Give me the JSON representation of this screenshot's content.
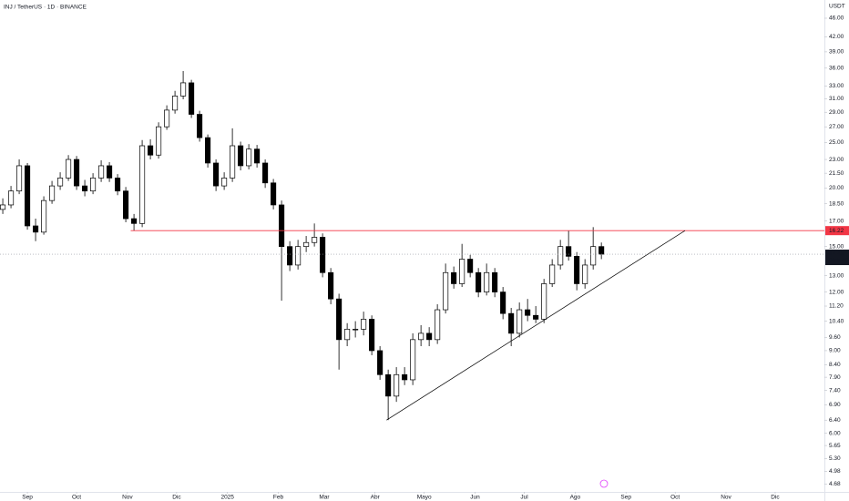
{
  "chart_data": {
    "type": "candlestick",
    "title": "INJ / TetherUS · 1D · BINANCE",
    "y_axis_label": "USDT",
    "log_scale": true,
    "grid": false,
    "xlim": [
      -16.7,
      486
    ],
    "ylim": [
      4.5,
      50.3
    ],
    "xticks": [
      {
        "value": 0,
        "label": "Sep"
      },
      {
        "value": 30,
        "label": "Oct"
      },
      {
        "value": 61,
        "label": "Nov"
      },
      {
        "value": 91,
        "label": "Dic"
      },
      {
        "value": 122,
        "label": "2025"
      },
      {
        "value": 153,
        "label": "Feb"
      },
      {
        "value": 181,
        "label": "Mar"
      },
      {
        "value": 212,
        "label": "Abr"
      },
      {
        "value": 242,
        "label": "Mayo"
      },
      {
        "value": 273,
        "label": "Jun"
      },
      {
        "value": 303,
        "label": "Jul"
      },
      {
        "value": 334,
        "label": "Ago"
      },
      {
        "value": 365,
        "label": "Sep"
      },
      {
        "value": 395,
        "label": "Oct"
      },
      {
        "value": 426,
        "label": "Nov"
      },
      {
        "value": 456,
        "label": "Dic"
      }
    ],
    "yticks": [
      {
        "value": 46,
        "label": "46.00"
      },
      {
        "value": 42,
        "label": "42.00"
      },
      {
        "value": 39,
        "label": "39.00"
      },
      {
        "value": 36,
        "label": "36.00"
      },
      {
        "value": 33,
        "label": "33.00"
      },
      {
        "value": 31,
        "label": "31.00"
      },
      {
        "value": 29,
        "label": "29.00"
      },
      {
        "value": 27,
        "label": "27.00"
      },
      {
        "value": 25,
        "label": "25.00"
      },
      {
        "value": 23,
        "label": "23.00"
      },
      {
        "value": 21.5,
        "label": "21.50"
      },
      {
        "value": 20,
        "label": "20.00"
      },
      {
        "value": 18.5,
        "label": "18.50"
      },
      {
        "value": 17,
        "label": "17.00"
      },
      {
        "value": 15,
        "label": "15.00"
      },
      {
        "value": 13,
        "label": "13.00"
      },
      {
        "value": 12,
        "label": "12.00"
      },
      {
        "value": 11.2,
        "label": "11.20"
      },
      {
        "value": 10.4,
        "label": "10.40"
      },
      {
        "value": 9.6,
        "label": "9.60"
      },
      {
        "value": 9,
        "label": "9.00"
      },
      {
        "value": 8.4,
        "label": "8.40"
      },
      {
        "value": 7.9,
        "label": "7.90"
      },
      {
        "value": 7.4,
        "label": "7.40"
      },
      {
        "value": 6.9,
        "label": "6.90"
      },
      {
        "value": 6.4,
        "label": "6.40"
      },
      {
        "value": 6,
        "label": "6.00"
      },
      {
        "value": 5.65,
        "label": "5.65"
      },
      {
        "value": 5.3,
        "label": "5.30"
      },
      {
        "value": 4.98,
        "label": "4.98"
      },
      {
        "value": 4.68,
        "label": "4.68"
      }
    ],
    "x": [
      -15,
      -10,
      -5,
      0,
      5,
      10,
      15,
      20,
      25,
      30,
      35,
      40,
      45,
      50,
      55,
      60,
      65,
      70,
      75,
      80,
      85,
      90,
      95,
      100,
      105,
      110,
      115,
      120,
      125,
      130,
      135,
      140,
      145,
      150,
      155,
      160,
      165,
      170,
      175,
      180,
      185,
      190,
      195,
      200,
      205,
      210,
      215,
      220,
      225,
      230,
      235,
      240,
      245,
      250,
      255,
      260,
      265,
      270,
      275,
      280,
      285,
      290,
      295,
      300,
      305,
      310,
      315,
      320,
      325,
      330,
      335,
      340,
      345,
      350
    ],
    "open": [
      18.0,
      18.4,
      19.7,
      22.3,
      16.6,
      16.1,
      18.8,
      20.2,
      21.0,
      23.0,
      20.2,
      19.7,
      21.0,
      22.3,
      21.0,
      19.7,
      17.2,
      16.8,
      24.6,
      23.5,
      27.0,
      29.3,
      31.4,
      33.5,
      28.7,
      25.6,
      22.6,
      20.2,
      21.0,
      24.6,
      22.3,
      24.2,
      22.6,
      20.5,
      18.4,
      15.0,
      13.7,
      15.0,
      15.3,
      15.7,
      13.2,
      11.6,
      9.5,
      10.0,
      10.0,
      10.5,
      9.0,
      8.0,
      7.2,
      8.0,
      7.8,
      9.5,
      9.8,
      9.5,
      11.0,
      13.2,
      12.5,
      14.1,
      13.2,
      12.0,
      13.2,
      12.0,
      10.8,
      9.8,
      11.0,
      10.7,
      10.5,
      12.5,
      13.7,
      15.0,
      14.3,
      12.5,
      13.7,
      15.0
    ],
    "high": [
      19.0,
      20.2,
      23.0,
      22.6,
      17.2,
      19.2,
      20.7,
      21.6,
      23.5,
      23.4,
      20.8,
      21.5,
      22.9,
      22.7,
      21.4,
      20.1,
      17.6,
      25.3,
      25.4,
      27.6,
      30.0,
      32.2,
      35.5,
      34.0,
      29.2,
      26.0,
      23.0,
      21.6,
      26.8,
      25.1,
      24.8,
      24.7,
      23.0,
      20.9,
      18.8,
      15.4,
      15.5,
      15.8,
      16.8,
      16.0,
      13.5,
      11.9,
      10.3,
      10.4,
      10.9,
      10.7,
      9.2,
      8.2,
      8.3,
      8.3,
      9.8,
      10.2,
      10.1,
      11.3,
      13.8,
      13.6,
      15.2,
      14.4,
      13.5,
      13.8,
      13.5,
      12.3,
      11.1,
      11.4,
      11.6,
      11.2,
      12.8,
      14.1,
      15.5,
      16.2,
      14.6,
      14.1,
      16.5,
      15.3
    ],
    "low": [
      17.6,
      18.1,
      19.4,
      16.3,
      15.4,
      15.9,
      18.5,
      19.8,
      20.7,
      19.8,
      19.2,
      19.4,
      20.6,
      20.6,
      19.3,
      16.9,
      16.2,
      16.5,
      23.0,
      23.1,
      26.6,
      28.8,
      30.9,
      28.2,
      25.1,
      22.1,
      19.7,
      19.8,
      20.6,
      21.8,
      21.9,
      22.1,
      20.0,
      18.0,
      11.5,
      13.3,
      13.4,
      14.6,
      15.0,
      12.9,
      11.3,
      8.2,
      9.2,
      9.6,
      9.7,
      8.8,
      7.8,
      6.4,
      7.0,
      7.6,
      7.6,
      9.2,
      9.2,
      9.3,
      10.8,
      12.2,
      12.3,
      12.9,
      11.7,
      11.8,
      11.7,
      10.5,
      9.2,
      9.6,
      10.4,
      10.3,
      10.3,
      12.3,
      13.4,
      14.0,
      12.1,
      12.2,
      13.4,
      14.1
    ],
    "close": [
      18.4,
      19.7,
      22.3,
      16.6,
      16.1,
      18.8,
      20.2,
      21.0,
      23.0,
      20.2,
      19.7,
      21.0,
      22.3,
      21.0,
      19.7,
      17.2,
      16.8,
      24.6,
      23.5,
      27.0,
      29.3,
      31.4,
      33.5,
      28.7,
      25.6,
      22.6,
      20.2,
      21.0,
      24.6,
      22.3,
      24.2,
      22.6,
      20.5,
      18.4,
      15.0,
      13.7,
      15.0,
      15.3,
      15.7,
      13.2,
      11.6,
      9.5,
      10.0,
      10.0,
      10.5,
      9.0,
      8.0,
      7.2,
      8.0,
      7.8,
      9.5,
      9.8,
      9.5,
      11.0,
      13.2,
      12.5,
      14.1,
      13.2,
      12.0,
      13.2,
      12.0,
      10.8,
      9.8,
      11.0,
      10.7,
      10.5,
      12.5,
      13.7,
      15.0,
      14.3,
      12.5,
      13.7,
      15.0,
      14.45
    ],
    "up_color": "#ffffff",
    "down_color": "#000000",
    "wick_color": "#000000",
    "horizontal_line": {
      "value": 16.22,
      "start_x": 63,
      "color": "#f23645"
    },
    "last_price": {
      "value": 14.45,
      "countdown": "05:57:08",
      "color": "#131722"
    },
    "trendline": {
      "x": [
        219,
        401
      ],
      "y": [
        6.4,
        16.22
      ],
      "color": "#000000"
    }
  }
}
